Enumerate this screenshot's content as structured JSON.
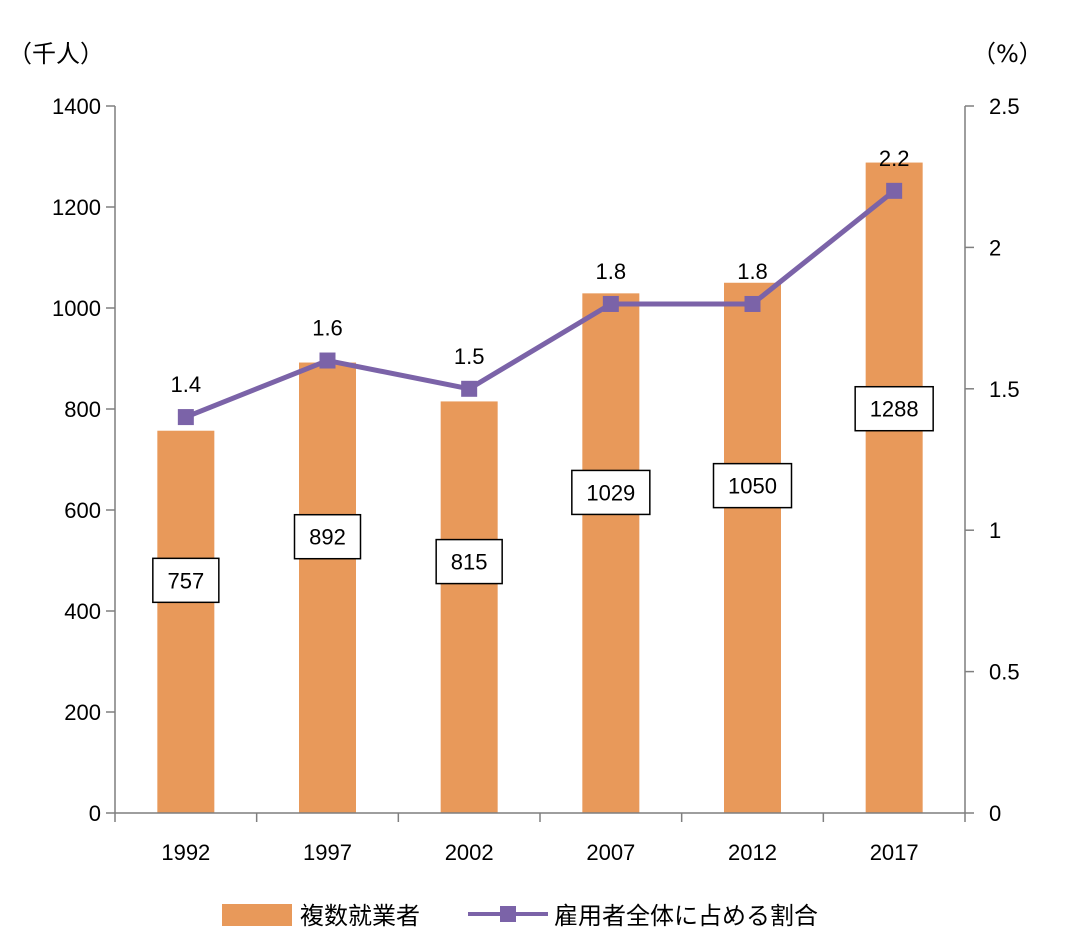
{
  "chart_data": {
    "type": "bar",
    "categories": [
      "1992",
      "1997",
      "2002",
      "2007",
      "2012",
      "2017"
    ],
    "series": [
      {
        "name": "複数就業者",
        "type": "bar",
        "axis": "left",
        "values": [
          757,
          892,
          815,
          1029,
          1050,
          1288
        ],
        "color": "#E8995A",
        "labels": [
          "757",
          "892",
          "815",
          "1029",
          "1050",
          "1288"
        ]
      },
      {
        "name": "雇用者全体に占める割合",
        "type": "line",
        "axis": "right",
        "values": [
          1.4,
          1.6,
          1.5,
          1.8,
          1.8,
          2.2
        ],
        "color": "#7B63A8",
        "labels": [
          "1.4",
          "1.6",
          "1.5",
          "1.8",
          "1.8",
          "2.2"
        ]
      }
    ],
    "y_left": {
      "unit": "（千人）",
      "ylim": [
        0,
        1400
      ],
      "ticks": [
        "0",
        "200",
        "400",
        "600",
        "800",
        "1000",
        "1200",
        "1400"
      ]
    },
    "y_right": {
      "unit": "（%）",
      "ylim": [
        0,
        2.5
      ],
      "ticks": [
        "0",
        "0.5",
        "1",
        "1.5",
        "2",
        "2.5"
      ]
    },
    "grid": false,
    "legend": "bottom"
  }
}
